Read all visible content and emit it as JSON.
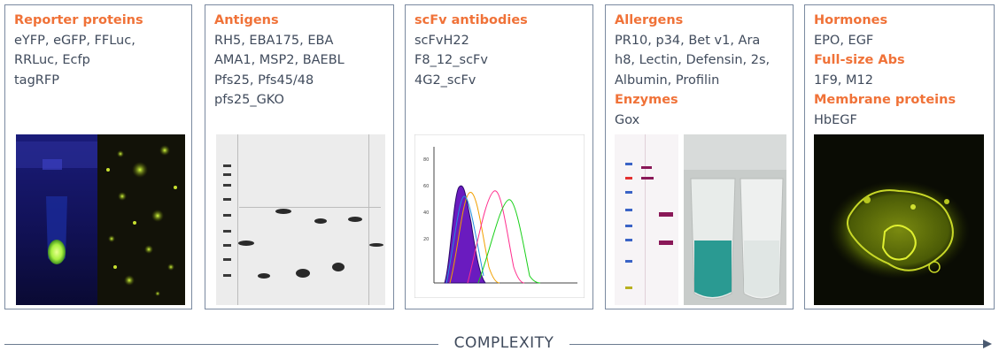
{
  "panels": [
    {
      "sections": [
        {
          "heading": "Reporter proteins",
          "lines": [
            "eYFP, eGFP, FFLuc,",
            "RRLuc, Ecfp",
            "tagRFP"
          ]
        }
      ]
    },
    {
      "sections": [
        {
          "heading": "Antigens",
          "lines": [
            "RH5, EBA175, EBA",
            "AMA1, MSP2, BAEBL",
            "Pfs25, Pfs45/48",
            "pfs25_GKO"
          ]
        }
      ]
    },
    {
      "sections": [
        {
          "heading": "scFv antibodies",
          "lines": [
            "scFvH22",
            "F8_12_scFv",
            "4G2_scFv"
          ]
        }
      ]
    },
    {
      "sections": [
        {
          "heading": "Allergens",
          "lines": [
            "PR10, p34, Bet v1, Ara",
            "h8, Lectin, Defensin, 2s,",
            "Albumin, Profilin"
          ]
        },
        {
          "heading": "Enzymes",
          "lines": [
            "Gox"
          ]
        }
      ]
    },
    {
      "sections": [
        {
          "heading": "Hormones",
          "lines": [
            "EPO, EGF"
          ]
        },
        {
          "heading": "Full-size Abs",
          "lines": [
            "1F9, M12"
          ]
        },
        {
          "heading": "Membrane proteins",
          "lines": [
            "HbEGF"
          ]
        }
      ]
    }
  ],
  "axis": {
    "label": "COMPLEXITY"
  },
  "colors": {
    "heading": "#f07238",
    "text": "#404b5c",
    "border": "#7a8aa0"
  },
  "images": [
    "fluorescence-tube-micrograph",
    "antigen-gel",
    "scfv-flow-histogram",
    "allergen-blot-enzyme-tubes",
    "membrane-protein-micrograph"
  ]
}
